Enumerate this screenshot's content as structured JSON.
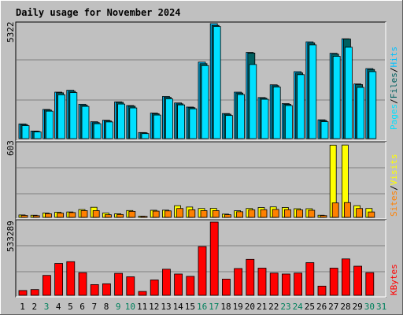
{
  "page_title": "Daily usage for November 2024",
  "colors": {
    "background": "#c0c0c0",
    "title": "#0000c0",
    "hits": "#00c0ff",
    "files": "#006060",
    "pages": "#00e0ff",
    "visits": "#ffff00",
    "sites": "#ff8000",
    "kbytes": "#ff0000",
    "weekend": "#00805c",
    "grid": "#808080"
  },
  "chart_data": [
    {
      "type": "bar",
      "name": "hits-files-pages",
      "scale_label": "5322",
      "ymax": 5322,
      "side_labels": [
        "Pages",
        "/",
        "Files",
        "/",
        "Hits"
      ],
      "categories": [
        "1",
        "2",
        "3",
        "4",
        "5",
        "6",
        "7",
        "8",
        "9",
        "10",
        "11",
        "12",
        "13",
        "14",
        "15",
        "16",
        "17",
        "18",
        "19",
        "20",
        "21",
        "22",
        "23",
        "24",
        "25",
        "26",
        "27",
        "28",
        "29",
        "30",
        "31"
      ],
      "series": [
        {
          "name": "Hits",
          "values": [
            680,
            350,
            1350,
            2150,
            2240,
            1590,
            780,
            850,
            1700,
            1530,
            280,
            1180,
            1950,
            1650,
            1460,
            3540,
            5322,
            1160,
            2150,
            3990,
            1900,
            2490,
            1620,
            3100,
            4480,
            870,
            3950,
            4620,
            2530,
            3240,
            0
          ]
        },
        {
          "name": "Files",
          "values": [
            650,
            340,
            1320,
            2120,
            2190,
            1550,
            740,
            820,
            1680,
            1500,
            270,
            1150,
            1910,
            1610,
            1430,
            3470,
            5240,
            1130,
            2110,
            3960,
            1870,
            2450,
            1590,
            3040,
            4430,
            840,
            3910,
            4610,
            2500,
            3200,
            0
          ]
        },
        {
          "name": "Pages",
          "values": [
            600,
            310,
            1270,
            2030,
            2130,
            1490,
            690,
            770,
            1600,
            1420,
            230,
            1090,
            1840,
            1560,
            1380,
            3380,
            5190,
            1070,
            2040,
            3430,
            1820,
            2390,
            1530,
            2960,
            4340,
            780,
            3810,
            4230,
            2370,
            3100,
            0
          ]
        }
      ]
    },
    {
      "type": "bar",
      "name": "visits-sites",
      "scale_label": "603",
      "ymax": 603,
      "side_labels": [
        "Sites",
        "/",
        "Visits"
      ],
      "categories": [
        "1",
        "2",
        "3",
        "4",
        "5",
        "6",
        "7",
        "8",
        "9",
        "10",
        "11",
        "12",
        "13",
        "14",
        "15",
        "16",
        "17",
        "18",
        "19",
        "20",
        "21",
        "22",
        "23",
        "24",
        "25",
        "26",
        "27",
        "28",
        "29",
        "30",
        "31"
      ],
      "series": [
        {
          "name": "Visits",
          "values": [
            20,
            18,
            36,
            43,
            45,
            65,
            84,
            36,
            30,
            57,
            10,
            59,
            60,
            97,
            86,
            74,
            75,
            27,
            55,
            74,
            82,
            87,
            82,
            72,
            72,
            18,
            601,
            602,
            97,
            74,
            0
          ]
        },
        {
          "name": "Sites",
          "values": [
            16,
            14,
            30,
            35,
            40,
            56,
            56,
            22,
            24,
            50,
            8,
            52,
            54,
            74,
            63,
            56,
            56,
            22,
            47,
            62,
            64,
            66,
            64,
            62,
            59,
            15,
            120,
            123,
            74,
            45,
            0
          ]
        }
      ]
    },
    {
      "type": "bar",
      "name": "kbytes",
      "scale_label": "533289",
      "ymax": 533289,
      "side_labels": [
        "KBytes"
      ],
      "categories": [
        "1",
        "2",
        "3",
        "4",
        "5",
        "6",
        "7",
        "8",
        "9",
        "10",
        "11",
        "12",
        "13",
        "14",
        "15",
        "16",
        "17",
        "18",
        "19",
        "20",
        "21",
        "22",
        "23",
        "24",
        "25",
        "26",
        "27",
        "28",
        "29",
        "30",
        "31"
      ],
      "series": [
        {
          "name": "KBytes",
          "values": [
            35000,
            42000,
            145000,
            232000,
            245000,
            165000,
            78000,
            84000,
            160000,
            135000,
            28000,
            112000,
            190000,
            155000,
            138000,
            355000,
            533289,
            118000,
            195000,
            262000,
            198000,
            162000,
            155000,
            162000,
            238000,
            67000,
            198000,
            265000,
            212000,
            165000,
            0
          ]
        }
      ]
    }
  ],
  "days": [
    {
      "label": "1",
      "weekend": false
    },
    {
      "label": "2",
      "weekend": false
    },
    {
      "label": "3",
      "weekend": true
    },
    {
      "label": "4",
      "weekend": false
    },
    {
      "label": "5",
      "weekend": false
    },
    {
      "label": "6",
      "weekend": false
    },
    {
      "label": "7",
      "weekend": false
    },
    {
      "label": "8",
      "weekend": false
    },
    {
      "label": "9",
      "weekend": true
    },
    {
      "label": "10",
      "weekend": true
    },
    {
      "label": "11",
      "weekend": false
    },
    {
      "label": "12",
      "weekend": false
    },
    {
      "label": "13",
      "weekend": false
    },
    {
      "label": "14",
      "weekend": false
    },
    {
      "label": "15",
      "weekend": false
    },
    {
      "label": "16",
      "weekend": true
    },
    {
      "label": "17",
      "weekend": true
    },
    {
      "label": "18",
      "weekend": false
    },
    {
      "label": "19",
      "weekend": false
    },
    {
      "label": "20",
      "weekend": false
    },
    {
      "label": "21",
      "weekend": false
    },
    {
      "label": "22",
      "weekend": false
    },
    {
      "label": "23",
      "weekend": true
    },
    {
      "label": "24",
      "weekend": true
    },
    {
      "label": "25",
      "weekend": false
    },
    {
      "label": "26",
      "weekend": false
    },
    {
      "label": "27",
      "weekend": false
    },
    {
      "label": "28",
      "weekend": false
    },
    {
      "label": "29",
      "weekend": false
    },
    {
      "label": "30",
      "weekend": true
    },
    {
      "label": "31",
      "weekend": true
    }
  ]
}
